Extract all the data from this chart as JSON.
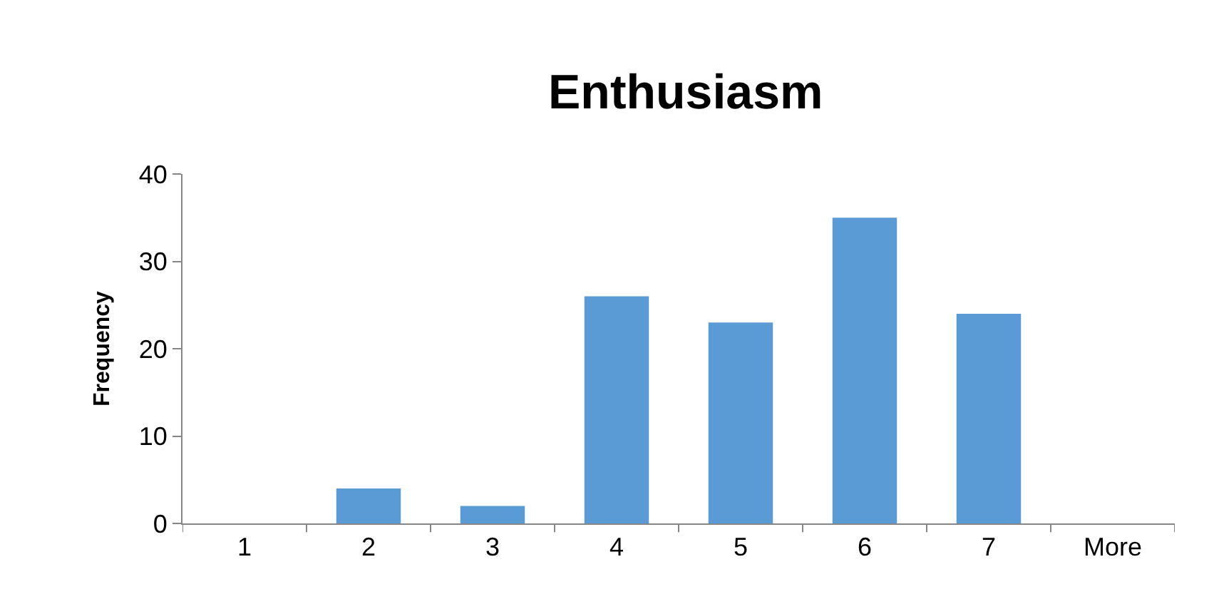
{
  "chart_data": {
    "type": "bar",
    "title": "Enthusiasm",
    "ylabel": "Frequency",
    "categories": [
      "1",
      "2",
      "3",
      "4",
      "5",
      "6",
      "7",
      "More"
    ],
    "values": [
      0,
      4,
      2,
      26,
      23,
      35,
      24,
      0
    ],
    "color": "#5b9bd5",
    "ylim": [
      0,
      40
    ],
    "yticks": [
      0,
      10,
      20,
      30,
      40
    ]
  }
}
